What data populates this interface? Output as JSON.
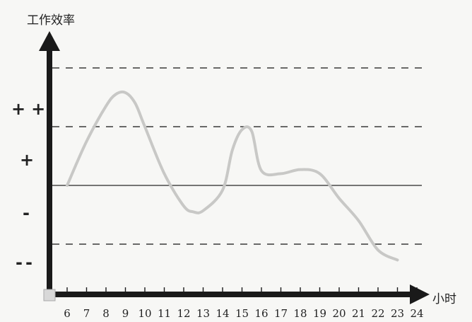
{
  "chart_data": {
    "type": "line",
    "ylabel": "工作效率",
    "xlabel": "小时",
    "x_ticks": [
      6,
      7,
      8,
      9,
      10,
      11,
      12,
      13,
      14,
      15,
      16,
      17,
      18,
      19,
      20,
      21,
      22,
      23,
      24
    ],
    "y_levels": [
      "++",
      "+",
      "-",
      "--"
    ],
    "y_level_values": [
      1.4,
      0.8,
      -0.35,
      -0.85
    ],
    "xlim": [
      6,
      24
    ],
    "ylim": [
      -1.3,
      2.0
    ],
    "baseline": 0,
    "dashed_lines": [
      2.0,
      1.0,
      -1.0
    ],
    "grid": false,
    "legend": "none",
    "curve_color": "#c8c8c6",
    "series": [
      {
        "x": [
          6,
          7,
          8,
          8.5,
          9,
          9.5,
          10,
          11,
          12,
          12.5,
          13,
          14,
          14.5,
          15,
          15.5,
          16,
          17,
          18,
          19,
          20,
          21,
          22,
          23
        ],
        "y": [
          0.0,
          0.75,
          1.35,
          1.55,
          1.58,
          1.4,
          1.0,
          0.2,
          -0.35,
          -0.45,
          -0.43,
          -0.08,
          0.6,
          0.95,
          0.92,
          0.25,
          0.2,
          0.27,
          0.2,
          -0.22,
          -0.6,
          -1.1,
          -1.27
        ]
      }
    ]
  }
}
